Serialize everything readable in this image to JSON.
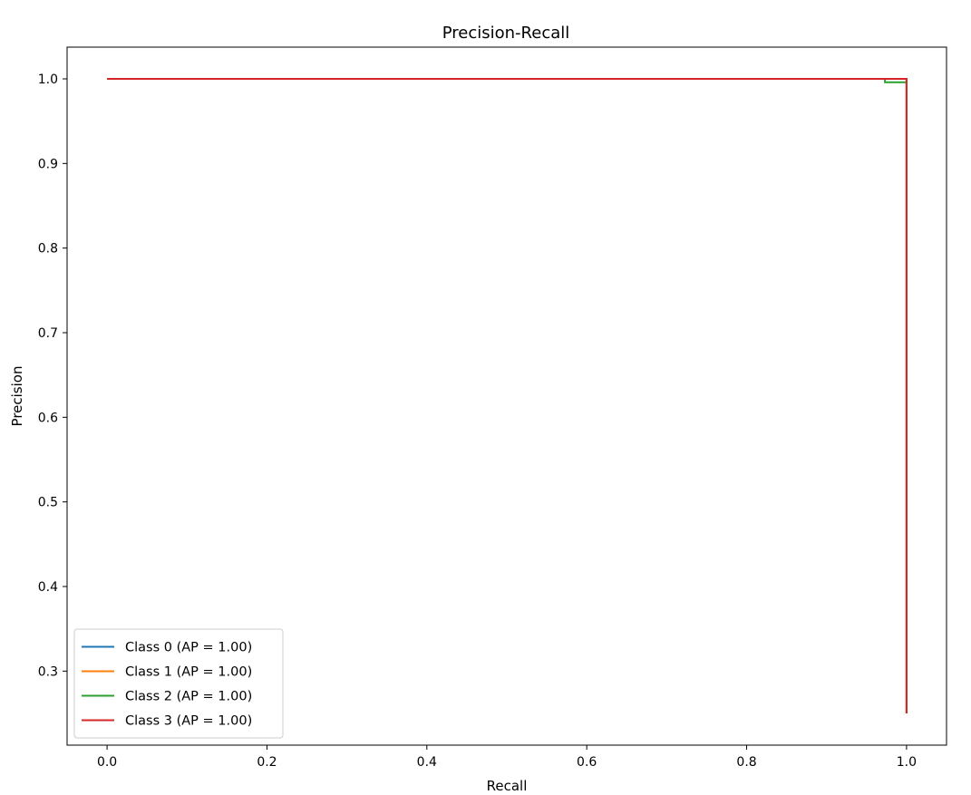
{
  "chart_data": {
    "type": "line",
    "title": "Precision-Recall",
    "xlabel": "Recall",
    "ylabel": "Precision",
    "xlim": [
      -0.05,
      1.05
    ],
    "ylim": [
      0.2125,
      1.0375
    ],
    "xticks": [
      "0.0",
      "0.2",
      "0.4",
      "0.6",
      "0.8",
      "1.0"
    ],
    "yticks": [
      "0.3",
      "0.4",
      "0.5",
      "0.6",
      "0.7",
      "0.8",
      "0.9",
      "1.0"
    ],
    "legend_position": "lower-left",
    "grid": false,
    "series": [
      {
        "name": "Class 0 (AP = 1.00)",
        "color": "#1f77b4",
        "x": [
          0.0,
          1.0,
          1.0
        ],
        "y": [
          1.0,
          1.0,
          0.25
        ]
      },
      {
        "name": "Class 1 (AP = 1.00)",
        "color": "#ff7f0e",
        "x": [
          0.0,
          1.0,
          1.0
        ],
        "y": [
          1.0,
          1.0,
          0.25
        ]
      },
      {
        "name": "Class 2 (AP = 1.00)",
        "color": "#2ca02c",
        "x": [
          0.0,
          0.973,
          0.973,
          1.0,
          1.0
        ],
        "y": [
          1.0,
          1.0,
          0.996,
          0.996,
          0.25
        ]
      },
      {
        "name": "Class 3 (AP = 1.00)",
        "color": "#d62728",
        "x": [
          0.0,
          1.0,
          1.0
        ],
        "y": [
          1.0,
          1.0,
          0.25
        ]
      }
    ]
  }
}
